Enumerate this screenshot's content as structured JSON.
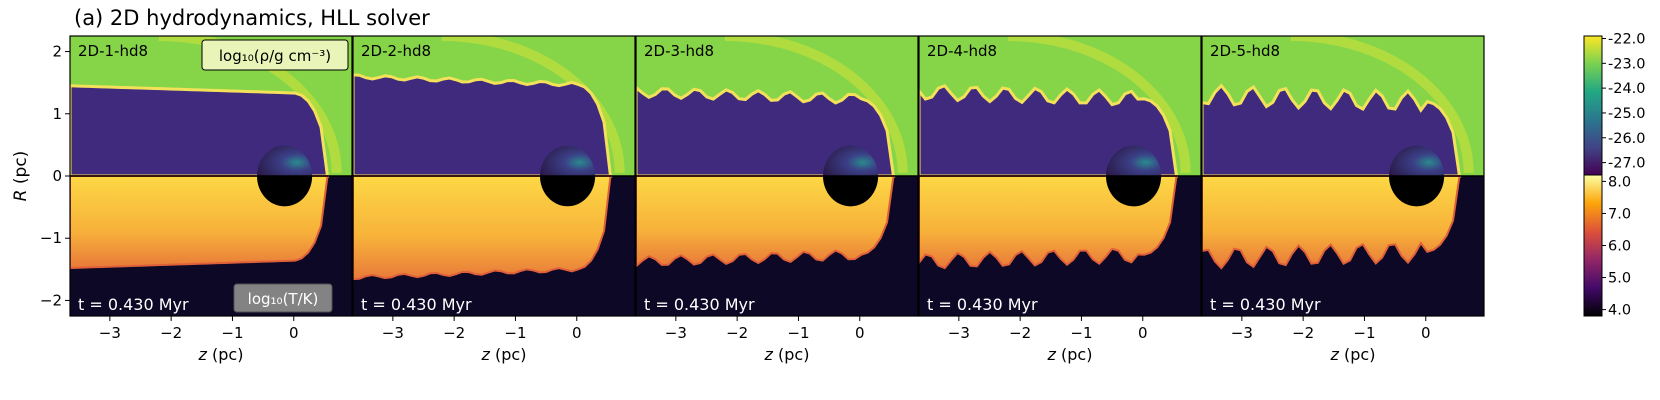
{
  "figure": {
    "title": "(a) 2D hydrodynamics, HLL solver",
    "ylabel": "R (pc)",
    "xlabel": "z (pc)"
  },
  "chart_data": {
    "type": "heatmap",
    "title": "(a) 2D hydrodynamics, HLL solver",
    "xlabel": "z (pc)",
    "ylabel": "R (pc)",
    "xlim": [
      -3.65,
      0.95
    ],
    "ylim": [
      -2.25,
      2.25
    ],
    "x_ticks": [
      -3,
      -2,
      -1,
      0
    ],
    "x_tick_labels": [
      "−3",
      "−2",
      "−1",
      "0"
    ],
    "y_ticks": [
      2,
      1,
      0,
      -1,
      -2
    ],
    "y_tick_labels": [
      "2",
      "1",
      "0",
      "−1",
      "−2"
    ],
    "upper_half_quantity": "log₁₀(ρ/g cm⁻³)",
    "lower_half_quantity": "log₁₀(T/K)",
    "panels": [
      {
        "label": "2D-1-hd8",
        "time": "t = 0.430 Myr"
      },
      {
        "label": "2D-2-hd8",
        "time": "t = 0.430 Myr"
      },
      {
        "label": "2D-3-hd8",
        "time": "t = 0.430 Myr"
      },
      {
        "label": "2D-4-hd8",
        "time": "t = 0.430 Myr"
      },
      {
        "label": "2D-5-hd8",
        "time": "t = 0.430 Myr"
      }
    ],
    "density_colorbar": {
      "ticks": [
        -22.0,
        -23.0,
        -24.0,
        -25.0,
        -26.0,
        -27.0
      ],
      "tick_labels": [
        "-22.0",
        "-23.0",
        "-24.0",
        "-25.0",
        "-26.0",
        "-27.0"
      ],
      "range": [
        -27.5,
        -21.9
      ],
      "colormap": "viridis"
    },
    "temperature_colorbar": {
      "ticks": [
        8.0,
        7.0,
        6.0,
        5.0,
        4.0
      ],
      "tick_labels": [
        "8.0",
        "7.0",
        "6.0",
        "5.0",
        "4.0"
      ],
      "range": [
        3.8,
        8.2
      ],
      "colormap": "inferno"
    },
    "density_label": "log₁₀(ρ/g cm⁻³)",
    "temperature_label": "log₁₀(T/K)"
  },
  "colors": {
    "ambient_density": "#86d549",
    "low_density": "#3f2a7d",
    "bubble_density": "#2a1846",
    "ambient_temperature": "#0c0826",
    "hot_gas": "#f8c93e",
    "shell_edge": "#f4e15a"
  }
}
